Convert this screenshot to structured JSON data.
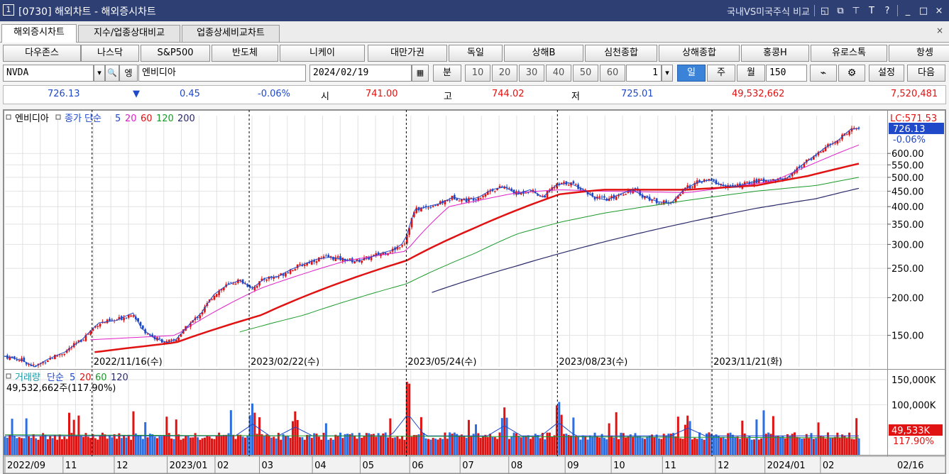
{
  "title_bar": {
    "window_number": "1",
    "title": "[0730] 해외차트 - 해외증시차트",
    "compare_label": "국내VS미국주식 비교",
    "icons": [
      "layout-icon",
      "window-icon",
      "pin-icon",
      "font-icon",
      "help-icon",
      "minimize-icon",
      "maximize-icon",
      "close-icon"
    ],
    "icon_glyphs": [
      "◱",
      "⧉",
      "⊤",
      "T",
      "?",
      "_",
      "□",
      "×"
    ]
  },
  "tabs": [
    {
      "label": "해외증시차트",
      "active": true
    },
    {
      "label": "지수/업종상대비교",
      "active": false
    },
    {
      "label": "업종상세비교차트",
      "active": false
    }
  ],
  "tab_close_glyph": "×",
  "index_buttons": [
    "다우존스",
    "나스닥",
    "S&P500",
    "반도체",
    "니케이",
    "대만가권",
    "독일",
    "상해B",
    "심천종합",
    "상해종합",
    "홍콩H",
    "유로스톡",
    "항셍"
  ],
  "controls": {
    "symbol_code": "NVDA",
    "symbol_name": "엔비디아",
    "date": "2024/02/19",
    "minute_label": "분",
    "intervals": [
      "10",
      "20",
      "30",
      "40",
      "50",
      "60"
    ],
    "period_count": "1",
    "period_buttons": [
      "일",
      "주",
      "월"
    ],
    "active_period": "일",
    "bar_count": "150",
    "settings_label": "설정",
    "next_label": "다음",
    "dropdown_glyph": "▾",
    "search_glyph": "🔍",
    "calendar_glyph": "▦",
    "gear_glyph": "⚙",
    "chart_type_glyph": "⌁",
    "symbol_search_glyph": "엥"
  },
  "price_bar": {
    "price": "726.13",
    "change_arrow": "▼",
    "change": "0.45",
    "change_pct": "-0.06%",
    "open_label": "시",
    "open": "741.00",
    "high_label": "고",
    "high": "744.02",
    "low_label": "저",
    "low": "725.01",
    "volume": "49,532,662",
    "amount": "7,520,481"
  },
  "chart_data": {
    "type": "candlestick",
    "price_panel": {
      "legend": [
        {
          "text": "엔비디아",
          "color": "#000000"
        },
        {
          "text": "종가 단순",
          "color": "#1f49c8"
        },
        {
          "text": "5",
          "color": "#1f49c8"
        },
        {
          "text": "20",
          "color": "#e020c8"
        },
        {
          "text": "60",
          "color": "#e01212"
        },
        {
          "text": "120",
          "color": "#1a9a2a"
        },
        {
          "text": "200",
          "color": "#2a2a6a"
        }
      ],
      "lc_label": "LC:571.53",
      "current_label": "726.13",
      "current_pct": "-0.06%",
      "scale": "log",
      "y_ticks": [
        "600.00",
        "550.00",
        "500.00",
        "450.00",
        "400.00",
        "350.00",
        "300.00",
        "250.00",
        "200.00",
        "150.00"
      ],
      "y_tick_values": [
        600,
        550,
        500,
        450,
        400,
        350,
        300,
        250,
        200,
        150
      ],
      "ylim": [
        118,
        800
      ],
      "vlines": [
        {
          "date": "2022/11/16(수)",
          "x": 0.102
        },
        {
          "date": "2023/02/22(수)",
          "x": 0.286
        },
        {
          "date": "2023/05/24(수)",
          "x": 0.47
        },
        {
          "date": "2023/08/23(수)",
          "x": 0.647
        },
        {
          "date": "2023/11/21(화)",
          "x": 0.828
        }
      ],
      "close_keypoints": [
        [
          0,
          128
        ],
        [
          0.02,
          124
        ],
        [
          0.035,
          118
        ],
        [
          0.05,
          125
        ],
        [
          0.07,
          132
        ],
        [
          0.09,
          145
        ],
        [
          0.11,
          165
        ],
        [
          0.13,
          168
        ],
        [
          0.15,
          178
        ],
        [
          0.16,
          158
        ],
        [
          0.175,
          147
        ],
        [
          0.19,
          142
        ],
        [
          0.2,
          145
        ],
        [
          0.215,
          162
        ],
        [
          0.23,
          178
        ],
        [
          0.245,
          205
        ],
        [
          0.26,
          220
        ],
        [
          0.275,
          228
        ],
        [
          0.29,
          215
        ],
        [
          0.305,
          232
        ],
        [
          0.32,
          235
        ],
        [
          0.335,
          248
        ],
        [
          0.35,
          258
        ],
        [
          0.365,
          268
        ],
        [
          0.38,
          272
        ],
        [
          0.395,
          268
        ],
        [
          0.41,
          264
        ],
        [
          0.425,
          270
        ],
        [
          0.44,
          280
        ],
        [
          0.455,
          288
        ],
        [
          0.468,
          305
        ],
        [
          0.48,
          390
        ],
        [
          0.495,
          400
        ],
        [
          0.51,
          410
        ],
        [
          0.525,
          430
        ],
        [
          0.54,
          420
        ],
        [
          0.555,
          430
        ],
        [
          0.57,
          455
        ],
        [
          0.585,
          465
        ],
        [
          0.6,
          440
        ],
        [
          0.615,
          455
        ],
        [
          0.63,
          430
        ],
        [
          0.645,
          470
        ],
        [
          0.66,
          480
        ],
        [
          0.675,
          460
        ],
        [
          0.69,
          430
        ],
        [
          0.705,
          420
        ],
        [
          0.72,
          440
        ],
        [
          0.735,
          455
        ],
        [
          0.75,
          430
        ],
        [
          0.765,
          415
        ],
        [
          0.78,
          410
        ],
        [
          0.795,
          455
        ],
        [
          0.81,
          480
        ],
        [
          0.825,
          490
        ],
        [
          0.84,
          470
        ],
        [
          0.855,
          465
        ],
        [
          0.87,
          478
        ],
        [
          0.885,
          488
        ],
        [
          0.9,
          490
        ],
        [
          0.915,
          495
        ],
        [
          0.93,
          540
        ],
        [
          0.945,
          580
        ],
        [
          0.96,
          625
        ],
        [
          0.975,
          660
        ],
        [
          0.99,
          720
        ],
        [
          1,
          726
        ]
      ],
      "ma_keypoints": {
        "20": [
          [
            0.1,
            145
          ],
          [
            0.2,
            150
          ],
          [
            0.3,
            215
          ],
          [
            0.4,
            265
          ],
          [
            0.47,
            285
          ],
          [
            0.52,
            400
          ],
          [
            0.6,
            445
          ],
          [
            0.65,
            455
          ],
          [
            0.7,
            450
          ],
          [
            0.8,
            445
          ],
          [
            0.9,
            485
          ],
          [
            0.95,
            560
          ],
          [
            1,
            640
          ]
        ],
        "60": [
          [
            0.105,
            132
          ],
          [
            0.2,
            142
          ],
          [
            0.3,
            175
          ],
          [
            0.4,
            228
          ],
          [
            0.47,
            265
          ],
          [
            0.55,
            340
          ],
          [
            0.62,
            410
          ],
          [
            0.65,
            440
          ],
          [
            0.7,
            455
          ],
          [
            0.8,
            455
          ],
          [
            0.88,
            470
          ],
          [
            0.94,
            505
          ],
          [
            1,
            555
          ]
        ],
        "120": [
          [
            0.275,
            154
          ],
          [
            0.35,
            175
          ],
          [
            0.47,
            222
          ],
          [
            0.55,
            280
          ],
          [
            0.6,
            325
          ],
          [
            0.65,
            355
          ],
          [
            0.7,
            380
          ],
          [
            0.8,
            420
          ],
          [
            0.88,
            450
          ],
          [
            0.95,
            470
          ],
          [
            1,
            500
          ]
        ],
        "200": [
          [
            0.5,
            208
          ],
          [
            0.6,
            255
          ],
          [
            0.7,
            305
          ],
          [
            0.8,
            355
          ],
          [
            0.88,
            395
          ],
          [
            0.95,
            425
          ],
          [
            1,
            460
          ]
        ]
      }
    },
    "volume_panel": {
      "legend": [
        {
          "text": "거래량",
          "color": "#1a9aa8"
        },
        {
          "text": "단순",
          "color": "#1f49c8"
        },
        {
          "text": "5",
          "color": "#1f49c8"
        },
        {
          "text": "20",
          "color": "#e01212"
        },
        {
          "text": "60",
          "color": "#1a9a2a"
        },
        {
          "text": "120",
          "color": "#2a2a6a"
        }
      ],
      "sub_legend": "49,532,662주(117.90%)",
      "y_ticks": [
        "150,000K",
        "100,000K"
      ],
      "y_tick_values": [
        150000,
        100000
      ],
      "current_label": "49,533K",
      "current_pct": "117.90%",
      "ylim": [
        0,
        170000
      ],
      "spikes": [
        {
          "x": 0.29,
          "v": 105000
        },
        {
          "x": 0.472,
          "v": 162000
        },
        {
          "x": 0.648,
          "v": 115000
        },
        {
          "x": 0.585,
          "v": 95000
        },
        {
          "x": 0.34,
          "v": 88000
        },
        {
          "x": 0.8,
          "v": 82000
        }
      ]
    },
    "x_ticks": [
      {
        "label": "2022/09",
        "x": 0.0
      },
      {
        "label": "11",
        "x": 0.068
      },
      {
        "label": "12",
        "x": 0.128
      },
      {
        "label": "2023/01",
        "x": 0.19
      },
      {
        "label": "02",
        "x": 0.246
      },
      {
        "label": "03",
        "x": 0.298
      },
      {
        "label": "04",
        "x": 0.36
      },
      {
        "label": "05",
        "x": 0.416
      },
      {
        "label": "06",
        "x": 0.474
      },
      {
        "label": "07",
        "x": 0.533
      },
      {
        "label": "08",
        "x": 0.59
      },
      {
        "label": "09",
        "x": 0.656
      },
      {
        "label": "10",
        "x": 0.71
      },
      {
        "label": "11",
        "x": 0.77
      },
      {
        "label": "12",
        "x": 0.832
      },
      {
        "label": "2024/01",
        "x": 0.89
      },
      {
        "label": "02",
        "x": 0.955
      }
    ],
    "right_date_label": "02/16",
    "colors": {
      "up": "#e01212",
      "down": "#1f49c8",
      "vline": "#000000",
      "grid": "#e2e2e2"
    }
  }
}
